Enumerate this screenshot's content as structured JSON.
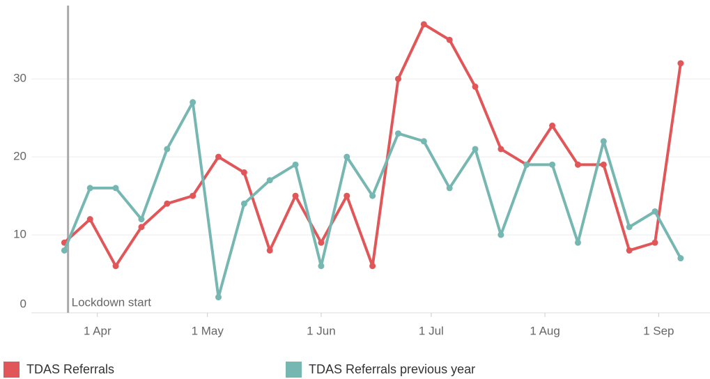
{
  "chart_data": {
    "type": "line",
    "x": [
      83,
      90,
      97,
      104,
      111,
      118,
      125,
      132,
      139,
      146,
      153,
      160,
      167,
      174,
      181,
      188,
      195,
      202,
      209,
      216,
      223,
      230,
      237,
      244,
      251
    ],
    "series": [
      {
        "name": "TDAS Referrals",
        "color": "#e15759",
        "values": [
          9,
          12,
          6,
          11,
          14,
          15,
          20,
          18,
          8,
          15,
          9,
          15,
          6,
          30,
          37,
          35,
          29,
          21,
          19,
          24,
          19,
          19,
          8,
          9,
          32
        ]
      },
      {
        "name": "TDAS Referrals previous year",
        "color": "#76b7b2",
        "values": [
          8,
          16,
          16,
          12,
          21,
          27,
          2,
          14,
          17,
          19,
          6,
          20,
          15,
          23,
          22,
          16,
          21,
          10,
          19,
          19,
          9,
          22,
          11,
          13,
          7
        ]
      }
    ],
    "xlim": [
      74,
      259
    ],
    "xticks": [
      {
        "value": 92,
        "label": "1 Apr"
      },
      {
        "value": 122,
        "label": "1 May"
      },
      {
        "value": 153,
        "label": "1 Jun"
      },
      {
        "value": 183,
        "label": "1 Jul"
      },
      {
        "value": 214,
        "label": "1 Aug"
      },
      {
        "value": 245,
        "label": "1 Sep"
      }
    ],
    "ylim": [
      0,
      39.4
    ],
    "yticks": [
      0,
      10,
      20,
      30
    ],
    "grid": true,
    "annotation": {
      "text": "Lockdown start",
      "x": 84
    }
  }
}
